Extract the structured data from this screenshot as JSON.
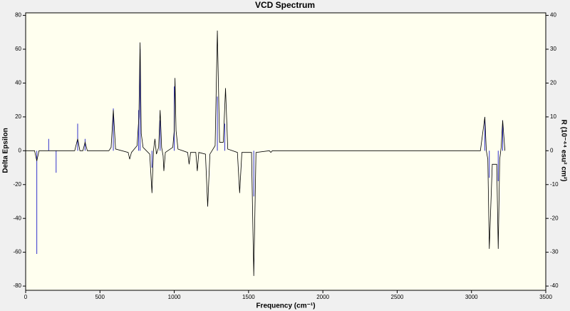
{
  "chart_data": {
    "type": "line",
    "title": "VCD Spectrum",
    "xlabel": "Frequency (cm⁻¹)",
    "ylabel": "Delta Epsilon",
    "y2label": "R (10⁻⁴⁴ esu² cm²)",
    "xlim": [
      0,
      3500
    ],
    "xticks": [
      0,
      500,
      1000,
      1500,
      2000,
      2500,
      3000,
      3500
    ],
    "ylim": [
      -82.5,
      81.5
    ],
    "yticks": [
      -80,
      -60,
      -40,
      -20,
      0,
      20,
      40,
      60,
      80
    ],
    "y2lim": [
      -41.25,
      40.75
    ],
    "y2ticks": [
      -40,
      -30,
      -20,
      -10,
      0,
      10,
      20,
      30,
      40
    ],
    "series": [
      {
        "type": "line",
        "color": "#000000",
        "x": [
          0,
          60,
          75,
          90,
          330,
          350,
          365,
          385,
          400,
          415,
          560,
          575,
          590,
          605,
          690,
          700,
          712,
          750,
          762,
          770,
          778,
          790,
          835,
          850,
          860,
          870,
          880,
          895,
          905,
          915,
          925,
          930,
          940,
          990,
          1000,
          1005,
          1012,
          1025,
          1090,
          1100,
          1110,
          1145,
          1155,
          1165,
          1210,
          1225,
          1240,
          1275,
          1290,
          1305,
          1330,
          1345,
          1360,
          1425,
          1440,
          1455,
          1520,
          1535,
          1550,
          1640,
          1650,
          1660,
          3060,
          3090,
          3100,
          3110,
          3120,
          3140,
          3170,
          3180,
          3190,
          3200,
          3210,
          3225
        ],
        "values": [
          0,
          0,
          -6,
          0,
          0,
          7,
          0,
          0,
          5,
          0,
          0,
          2,
          24,
          1,
          -1,
          -5,
          -1,
          3,
          20,
          64,
          10,
          2,
          -2,
          -25,
          0,
          7,
          -2,
          2,
          24,
          2,
          -3,
          -12,
          -1,
          2,
          12,
          43,
          12,
          1,
          -1,
          -8,
          -1,
          -1,
          -12,
          -1,
          -2,
          -33,
          -2,
          3,
          71,
          5,
          5,
          37,
          1,
          -1,
          -25,
          -1,
          -1,
          -74,
          -1,
          0,
          -1,
          0,
          0,
          20,
          0,
          -5,
          -58,
          -8,
          -8,
          -58,
          -5,
          2,
          18,
          0
        ]
      },
      {
        "type": "stick",
        "color": "#3333cc",
        "axis": "y2",
        "x": [
          75,
          155,
          205,
          350,
          400,
          590,
          760,
          770,
          850,
          905,
          1000,
          1290,
          1340,
          1535,
          3090,
          3120,
          3180,
          3210
        ],
        "values": [
          -30.5,
          3.5,
          -6.5,
          8,
          3.5,
          12.5,
          12,
          30,
          -5,
          9,
          19,
          16,
          8,
          -13.5,
          9,
          -8,
          -9,
          9
        ]
      }
    ]
  }
}
